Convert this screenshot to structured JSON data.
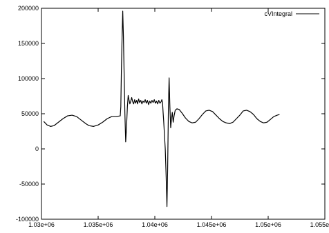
{
  "chart_data": {
    "type": "line",
    "title": "",
    "xlabel": "",
    "ylabel": "",
    "xlim": [
      1030000,
      1055000
    ],
    "ylim": [
      -100000,
      200000
    ],
    "grid": false,
    "legend_position": "top-right",
    "x_ticks": [
      {
        "value": 1030000,
        "label": "1.03e+06"
      },
      {
        "value": 1035000,
        "label": "1.035e+06"
      },
      {
        "value": 1040000,
        "label": "1.04e+06"
      },
      {
        "value": 1045000,
        "label": "1.045e+06"
      },
      {
        "value": 1050000,
        "label": "1.05e+06"
      },
      {
        "value": 1055000,
        "label": "1.055e+06"
      }
    ],
    "y_ticks": [
      {
        "value": 200000,
        "label": "200000"
      },
      {
        "value": 150000,
        "label": "150000"
      },
      {
        "value": 100000,
        "label": "100000"
      },
      {
        "value": 50000,
        "label": "50000"
      },
      {
        "value": 0,
        "label": "0"
      },
      {
        "value": -50000,
        "label": "-50000"
      },
      {
        "value": -100000,
        "label": "-100000"
      }
    ],
    "series": [
      {
        "name": "cVIntegral",
        "color": "#000000",
        "points": [
          [
            1030200,
            39000
          ],
          [
            1030500,
            34000
          ],
          [
            1030800,
            32000
          ],
          [
            1031100,
            33000
          ],
          [
            1031500,
            38000
          ],
          [
            1031900,
            43000
          ],
          [
            1032300,
            47000
          ],
          [
            1032700,
            48000
          ],
          [
            1033100,
            46000
          ],
          [
            1033500,
            41000
          ],
          [
            1033900,
            36000
          ],
          [
            1034200,
            33000
          ],
          [
            1034600,
            32000
          ],
          [
            1035000,
            34000
          ],
          [
            1035400,
            38000
          ],
          [
            1035800,
            43000
          ],
          [
            1036200,
            46000
          ],
          [
            1036600,
            46000
          ],
          [
            1036950,
            47000
          ],
          [
            1037000,
            60000
          ],
          [
            1037050,
            110000
          ],
          [
            1037120,
            165000
          ],
          [
            1037170,
            196000
          ],
          [
            1037230,
            160000
          ],
          [
            1037300,
            100000
          ],
          [
            1037360,
            50000
          ],
          [
            1037430,
            10000
          ],
          [
            1037500,
            30000
          ],
          [
            1037580,
            60000
          ],
          [
            1037650,
            76000
          ],
          [
            1037720,
            70000
          ],
          [
            1037800,
            64000
          ],
          [
            1037880,
            68000
          ],
          [
            1037960,
            73000
          ],
          [
            1038050,
            67000
          ],
          [
            1038130,
            64000
          ],
          [
            1038220,
            70000
          ],
          [
            1038300,
            65000
          ],
          [
            1038400,
            69000
          ],
          [
            1038480,
            64000
          ],
          [
            1038570,
            71000
          ],
          [
            1038660,
            66000
          ],
          [
            1038760,
            69000
          ],
          [
            1038860,
            64000
          ],
          [
            1038950,
            68000
          ],
          [
            1039050,
            66000
          ],
          [
            1039150,
            70000
          ],
          [
            1039250,
            65000
          ],
          [
            1039350,
            69000
          ],
          [
            1039450,
            63000
          ],
          [
            1039550,
            68000
          ],
          [
            1039650,
            65000
          ],
          [
            1039750,
            69000
          ],
          [
            1039850,
            66000
          ],
          [
            1039950,
            70000
          ],
          [
            1040050,
            65000
          ],
          [
            1040150,
            68000
          ],
          [
            1040250,
            64000
          ],
          [
            1040350,
            69000
          ],
          [
            1040450,
            65000
          ],
          [
            1040550,
            67000
          ],
          [
            1040620,
            70000
          ],
          [
            1040680,
            66000
          ],
          [
            1040730,
            52000
          ],
          [
            1040780,
            40000
          ],
          [
            1040850,
            20000
          ],
          [
            1040920,
            0
          ],
          [
            1041000,
            -40000
          ],
          [
            1041070,
            -82000
          ],
          [
            1041130,
            -30000
          ],
          [
            1041200,
            60000
          ],
          [
            1041260,
            101000
          ],
          [
            1041330,
            60000
          ],
          [
            1041400,
            30000
          ],
          [
            1041470,
            43000
          ],
          [
            1041540,
            52000
          ],
          [
            1041620,
            38000
          ],
          [
            1041700,
            47000
          ],
          [
            1041800,
            55000
          ],
          [
            1041950,
            57000
          ],
          [
            1042150,
            56000
          ],
          [
            1042400,
            51000
          ],
          [
            1042700,
            44000
          ],
          [
            1043000,
            39000
          ],
          [
            1043300,
            37000
          ],
          [
            1043600,
            38000
          ],
          [
            1043900,
            43000
          ],
          [
            1044200,
            49000
          ],
          [
            1044500,
            54000
          ],
          [
            1044800,
            55000
          ],
          [
            1045100,
            53000
          ],
          [
            1045400,
            48000
          ],
          [
            1045700,
            43000
          ],
          [
            1046000,
            39000
          ],
          [
            1046300,
            37000
          ],
          [
            1046600,
            36000
          ],
          [
            1046900,
            38000
          ],
          [
            1047200,
            43000
          ],
          [
            1047500,
            48000
          ],
          [
            1047800,
            54000
          ],
          [
            1048100,
            55000
          ],
          [
            1048400,
            53000
          ],
          [
            1048700,
            49000
          ],
          [
            1049000,
            43000
          ],
          [
            1049300,
            39000
          ],
          [
            1049600,
            37000
          ],
          [
            1049900,
            38000
          ],
          [
            1050200,
            42000
          ],
          [
            1050500,
            46000
          ],
          [
            1050800,
            48000
          ],
          [
            1051000,
            49000
          ]
        ]
      }
    ]
  }
}
